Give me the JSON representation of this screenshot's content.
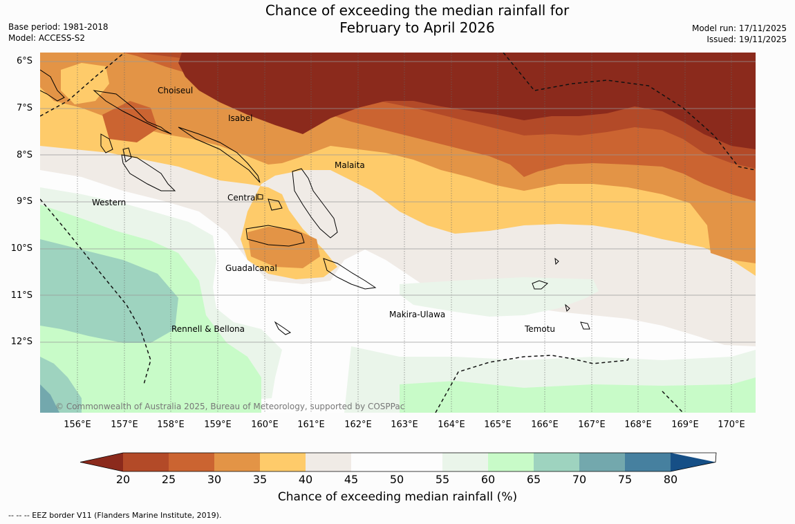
{
  "header": {
    "title_line1": "Chance of exceeding the median rainfall for",
    "title_line2": "February to April 2026",
    "base_period": "Base period: 1981-2018",
    "model": "Model: ACCESS-S2",
    "model_run": "Model run: 17/11/2025",
    "issued": "Issued: 19/11/2025"
  },
  "map": {
    "lat_labels": [
      "6°S",
      "7°S",
      "8°S",
      "9°S",
      "10°S",
      "11°S",
      "12°S"
    ],
    "lon_labels": [
      "156°E",
      "157°E",
      "158°E",
      "159°E",
      "160°E",
      "161°E",
      "162°E",
      "163°E",
      "164°E",
      "165°E",
      "166°E",
      "167°E",
      "168°E",
      "169°E",
      "170°E"
    ],
    "places": {
      "choiseul": "Choiseul",
      "isabel": "Isabel",
      "malaita": "Malaita",
      "central": "Central",
      "western": "Western",
      "guadalcanal": "Guadalcanal",
      "makira": "Makira-Ulawa",
      "rennell": "Rennell & Bellona",
      "temotu": "Temotu"
    },
    "copyright": "© Commonwealth of Australia 2025, Bureau of Meteorology, supported by COSPPac"
  },
  "colorbar": {
    "ticks": [
      "20",
      "25",
      "30",
      "35",
      "40",
      "45",
      "50",
      "55",
      "60",
      "65",
      "70",
      "75",
      "80"
    ],
    "colors": {
      "lt20": "#8b2a1c",
      "c20": "#b34a28",
      "c25": "#cb6431",
      "c30": "#e39446",
      "c35": "#fecb6a",
      "c40": "#f0ebe6",
      "c45": "#fdfdfd",
      "c50": "#fdfdfd",
      "c55": "#eaf5ea",
      "c60": "#c8fbc8",
      "c65": "#9ed3bf",
      "c70": "#73a8ad",
      "c75": "#46809f",
      "gt80": "#164f86"
    },
    "label": "Chance of exceeding median rainfall (%)"
  },
  "footer": {
    "eez": "--  --  -- EEZ border V11 (Flanders Marine Institute, 2019)."
  }
}
